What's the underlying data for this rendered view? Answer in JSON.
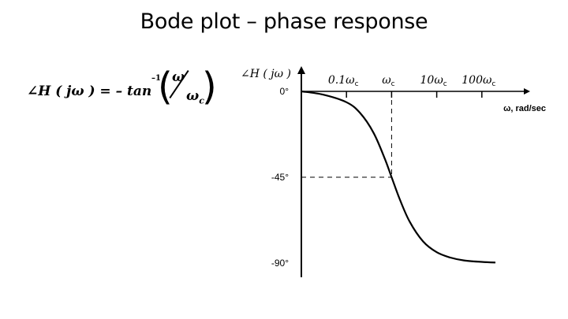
{
  "slide": {
    "title": "Bode plot – phase response"
  },
  "formula": {
    "lhs": "∠H ( jω ) = – tan",
    "exponent": "–1",
    "numerator": "ω",
    "denominator": "ω",
    "denominator_sub": "c"
  },
  "chart_data": {
    "type": "line",
    "ylabel": "∠H ( jω )",
    "xlabel": "ω, rad/sec",
    "x_scale": "log",
    "x_ticks": [
      {
        "value": 0.1,
        "label": "0.1ω",
        "sub": "c"
      },
      {
        "value": 1,
        "label": "ω",
        "sub": "c"
      },
      {
        "value": 10,
        "label": "10ω",
        "sub": "c"
      },
      {
        "value": 100,
        "label": "100ω",
        "sub": "c"
      }
    ],
    "y_ticks": [
      {
        "value": 0,
        "label": "0°"
      },
      {
        "value": -45,
        "label": "-45°"
      },
      {
        "value": -90,
        "label": "-90°"
      }
    ],
    "xlim": [
      0.01,
      1000
    ],
    "ylim": [
      -90,
      0
    ],
    "grid": false,
    "guide_point": {
      "x": 1,
      "y": -45
    },
    "series": [
      {
        "x": [
          0.01,
          0.03,
          0.1,
          0.2,
          0.4,
          0.7,
          1,
          1.5,
          2.5,
          5,
          10,
          20,
          40,
          100,
          200
        ],
        "values": [
          0,
          -1.7,
          -5.7,
          -11.3,
          -21.8,
          -35,
          -45,
          -56.3,
          -68.2,
          -78.7,
          -84.3,
          -87.1,
          -88.6,
          -89.4,
          -89.7
        ]
      }
    ],
    "colors": {
      "line": "#000000",
      "guide": "#000000"
    }
  }
}
